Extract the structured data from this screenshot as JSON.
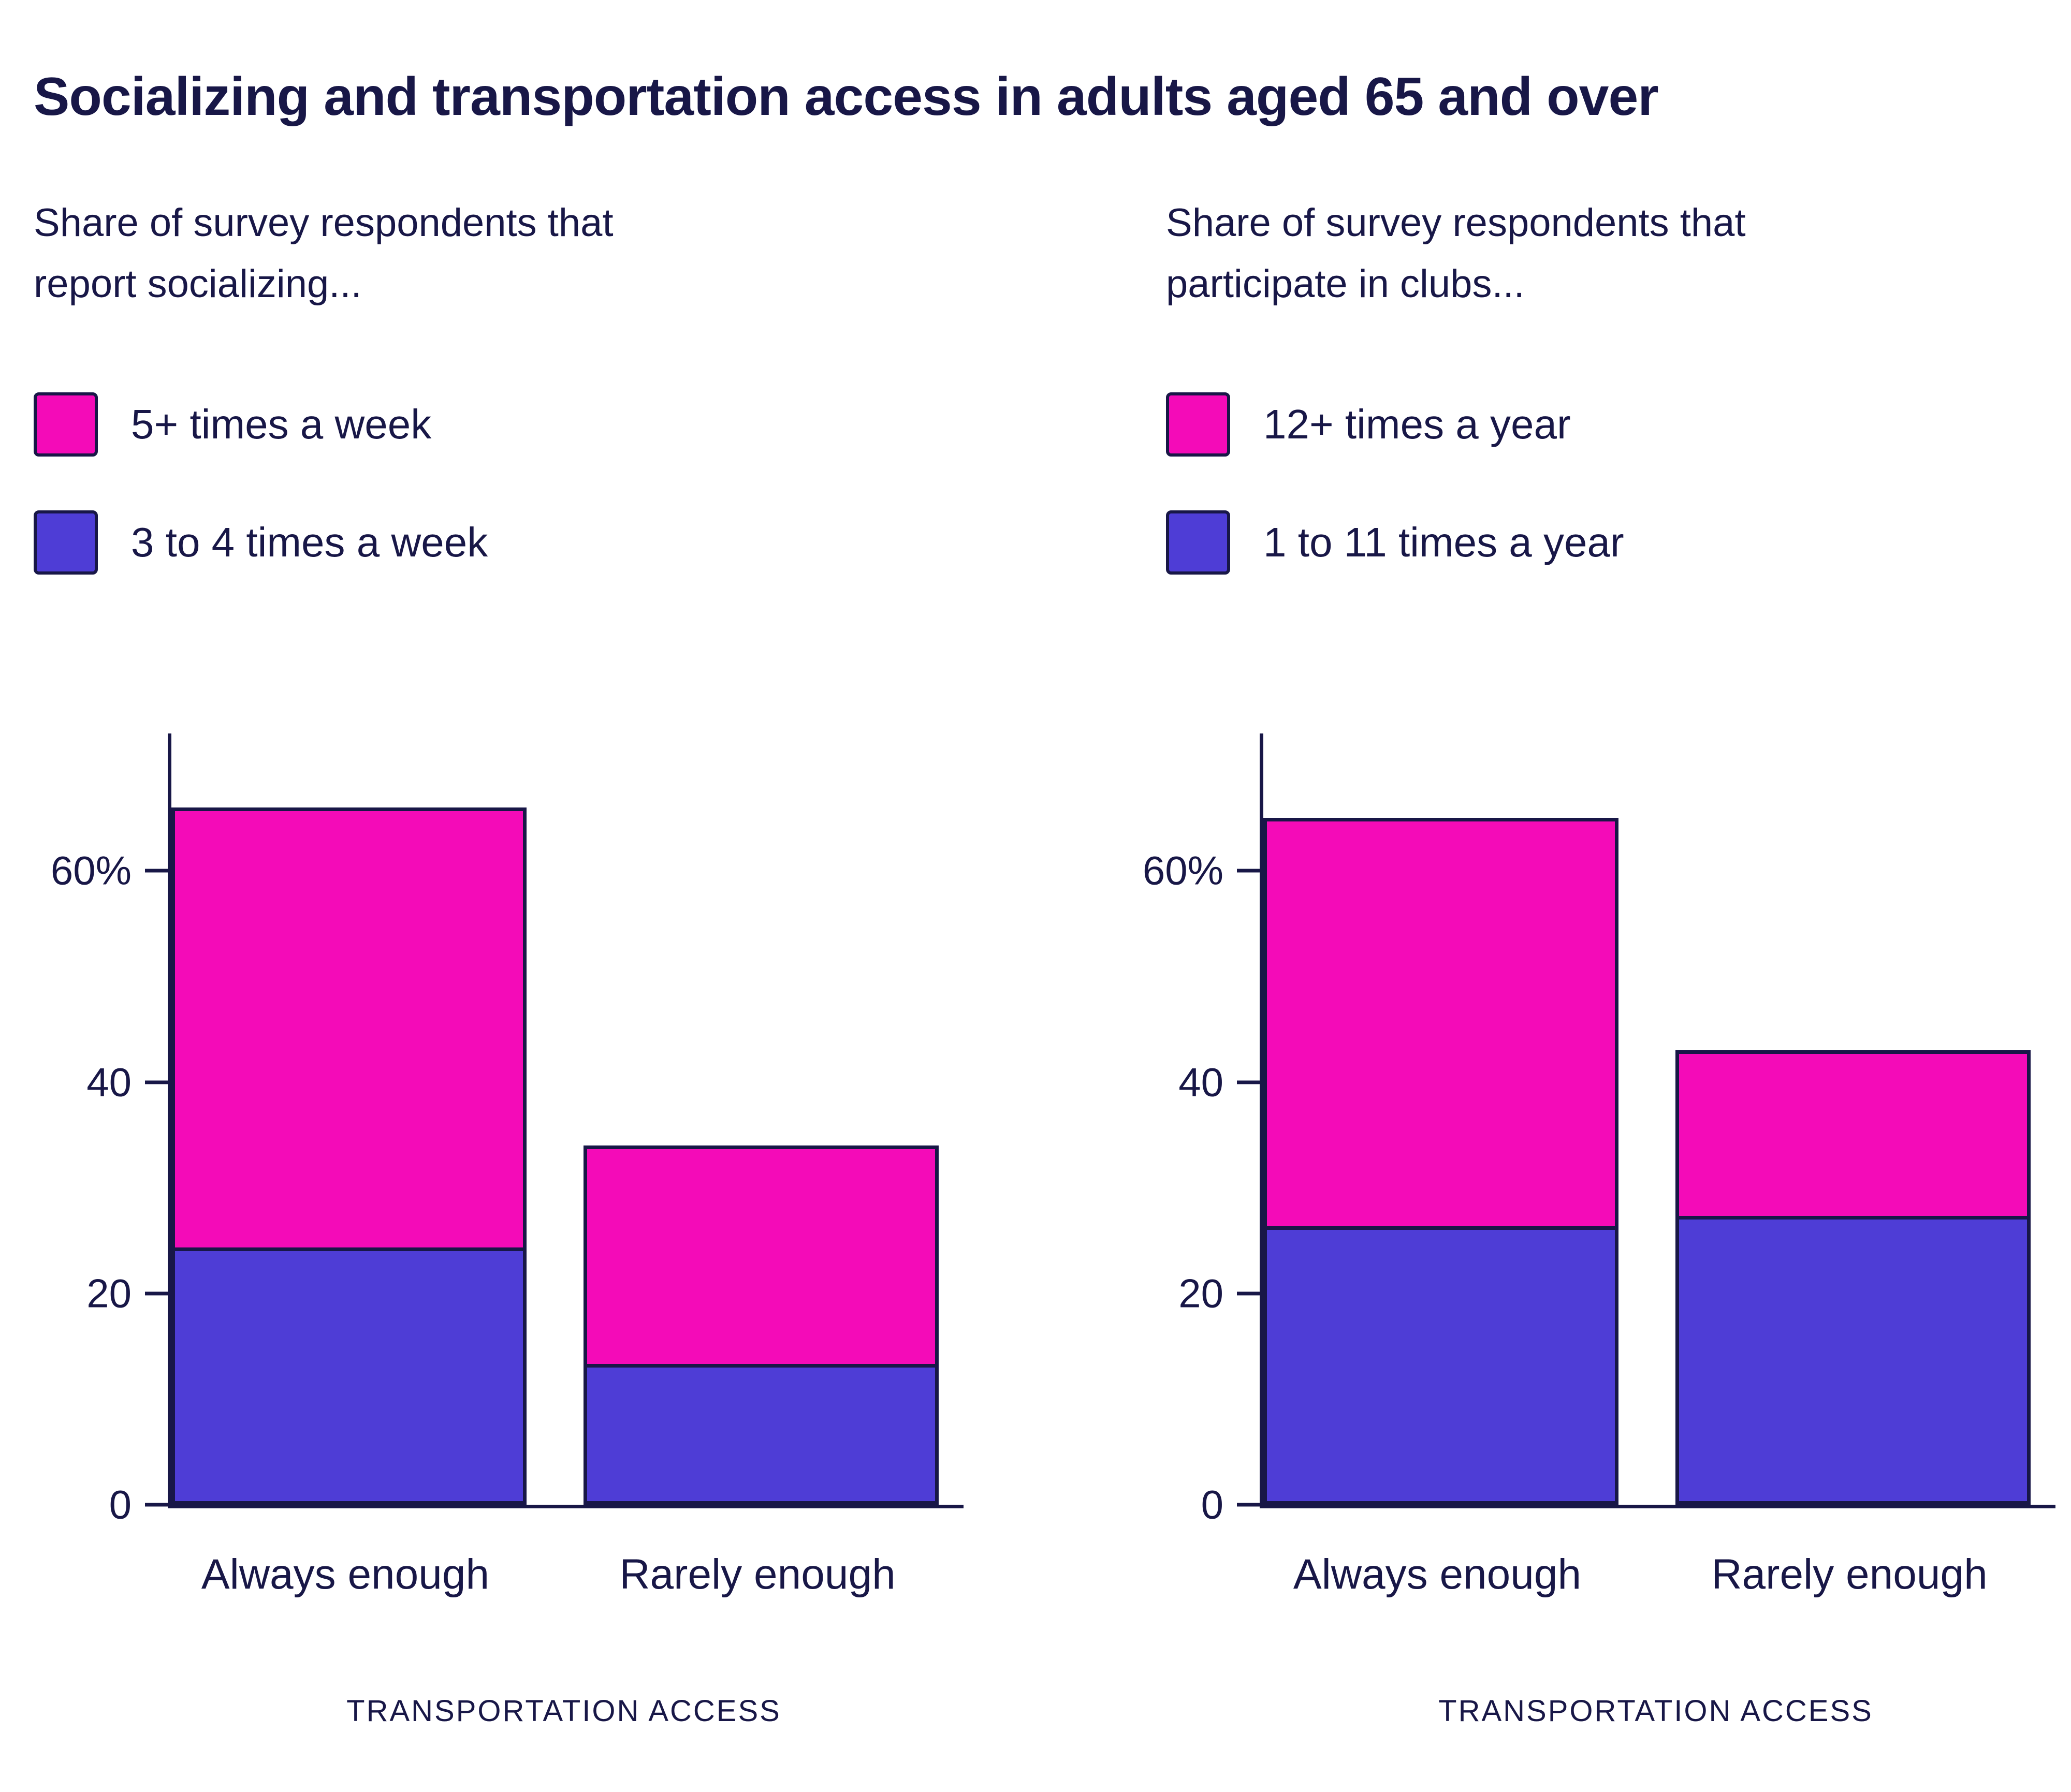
{
  "title": "Socializing and transportation access in adults aged 65 and over",
  "colors": {
    "ink": "#181747",
    "magenta": "#F40BB8",
    "blue": "#4E3DD6",
    "background": "#FFFFFF"
  },
  "chart_data": [
    {
      "type": "bar",
      "stacked": true,
      "subtitle": "Share of survey respondents that report socializing...",
      "legend": [
        {
          "label": "5+ times a week",
          "color": "#F40BB8"
        },
        {
          "label": "3 to 4 times a week",
          "color": "#4E3DD6"
        }
      ],
      "categories": [
        "Always enough",
        "Rarely enough"
      ],
      "series": [
        {
          "name": "3 to 4 times a week",
          "color": "#4E3DD6",
          "values": [
            24,
            13
          ]
        },
        {
          "name": "5+ times a week",
          "color": "#F40BB8",
          "values": [
            42,
            21
          ]
        }
      ],
      "totals": [
        66,
        34
      ],
      "xlabel": "TRANSPORTATION ACCESS",
      "yticks": [
        {
          "label": "0",
          "value": 0
        },
        {
          "label": "20",
          "value": 20
        },
        {
          "label": "40",
          "value": 40
        },
        {
          "label": "60%",
          "value": 60
        }
      ],
      "ylim": [
        0,
        73
      ],
      "grid": false,
      "legend_position": "top-left"
    },
    {
      "type": "bar",
      "stacked": true,
      "subtitle": "Share of survey respondents that participate in clubs...",
      "legend": [
        {
          "label": "12+ times a year",
          "color": "#F40BB8"
        },
        {
          "label": "1 to 11 times a year",
          "color": "#4E3DD6"
        }
      ],
      "categories": [
        "Always enough",
        "Rarely enough"
      ],
      "series": [
        {
          "name": "1 to 11 times a year",
          "color": "#4E3DD6",
          "values": [
            26,
            27
          ]
        },
        {
          "name": "12+ times a year",
          "color": "#F40BB8",
          "values": [
            39,
            16
          ]
        }
      ],
      "totals": [
        65,
        43
      ],
      "xlabel": "TRANSPORTATION ACCESS",
      "yticks": [
        {
          "label": "0",
          "value": 0
        },
        {
          "label": "20",
          "value": 20
        },
        {
          "label": "40",
          "value": 40
        },
        {
          "label": "60%",
          "value": 60
        }
      ],
      "ylim": [
        0,
        73
      ],
      "grid": false,
      "legend_position": "top-left"
    }
  ]
}
